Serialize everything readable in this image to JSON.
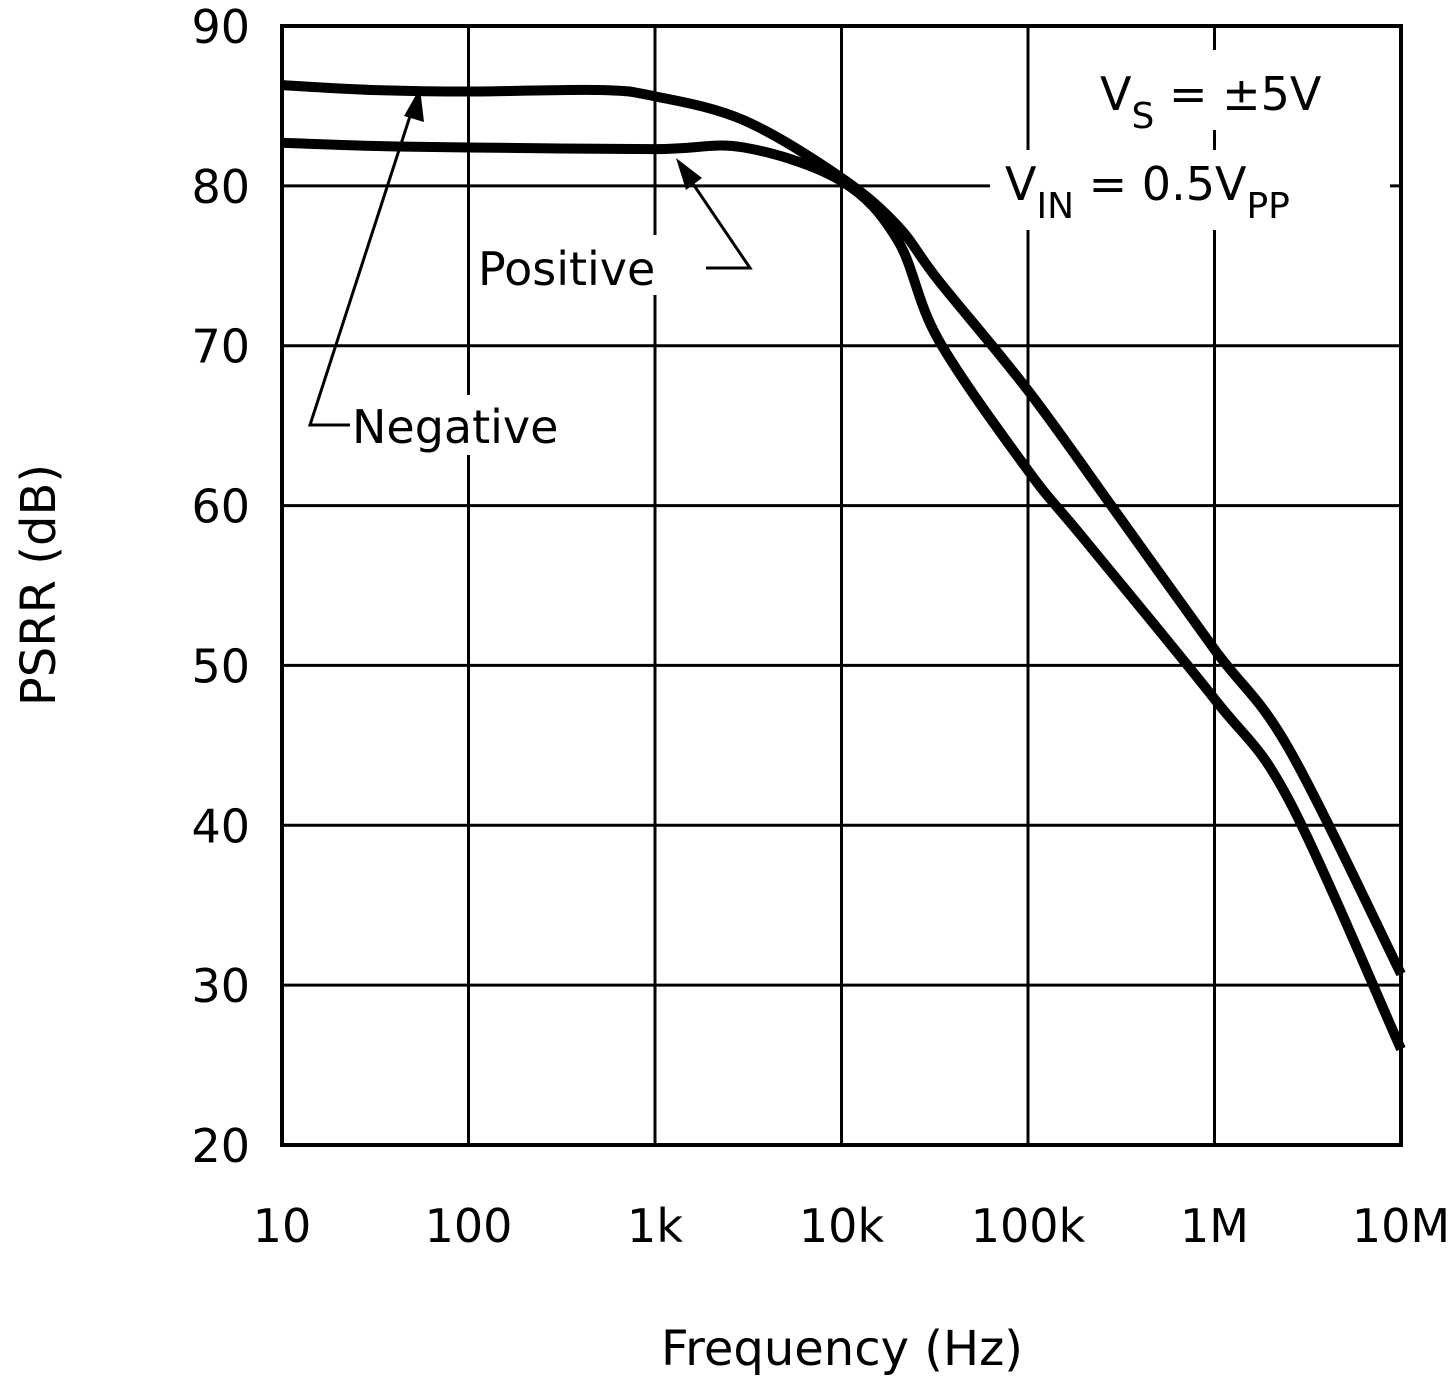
{
  "chart_data": {
    "type": "line",
    "title": "",
    "xlabel": "Frequency (Hz)",
    "ylabel": "PSRR (dB)",
    "xscale": "log",
    "xlim": [
      10,
      10000000
    ],
    "ylim": [
      20,
      90
    ],
    "grid": true,
    "x_tick_labels": [
      "10",
      "100",
      "1k",
      "10k",
      "100k",
      "1M",
      "10M"
    ],
    "x_tick_values": [
      10,
      100,
      1000,
      10000,
      100000,
      1000000,
      10000000
    ],
    "y_tick_labels": [
      "20",
      "30",
      "40",
      "50",
      "60",
      "70",
      "80",
      "90"
    ],
    "y_tick_values": [
      20,
      30,
      40,
      50,
      60,
      70,
      80,
      90
    ],
    "series": [
      {
        "name": "Negative",
        "x": [
          10,
          30,
          100,
          500,
          1000,
          3000,
          10000,
          20000,
          33000,
          100000,
          300000,
          1000000,
          2500000,
          10000000
        ],
        "y": [
          86.3,
          86.0,
          85.9,
          86.0,
          85.6,
          84.1,
          80.5,
          77.5,
          74.1,
          67.2,
          59.5,
          51.0,
          44.8,
          30.7
        ]
      },
      {
        "name": "Positive",
        "x": [
          10,
          30,
          100,
          1000,
          3000,
          10000,
          20000,
          33000,
          100000,
          200000,
          1000000,
          2500000,
          10000000
        ],
        "y": [
          82.7,
          82.5,
          82.4,
          82.3,
          82.4,
          80.3,
          76.6,
          70.4,
          62.2,
          57.9,
          47.9,
          41.6,
          26.0
        ]
      }
    ],
    "annotations": {
      "vs": {
        "main": "V",
        "sub": "S",
        "rest": " = ±5V"
      },
      "vin": {
        "main": "V",
        "sub": "IN",
        "rest": " = 0.5V",
        "sub2": "PP"
      }
    },
    "legend": "inline labels with arrows"
  }
}
